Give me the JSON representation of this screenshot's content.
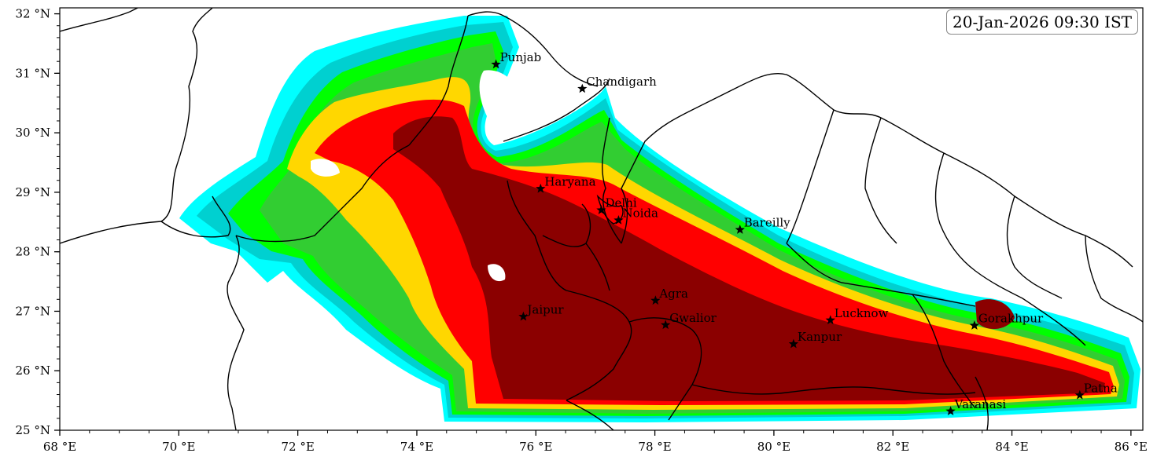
{
  "map": {
    "timestamp": "20-Jan-2026 09:30 IST",
    "extent": {
      "lon": [
        68,
        86.2
      ],
      "lat": [
        25,
        32.1
      ]
    },
    "x_ticks": [
      {
        "lon": 68,
        "label": "68 °E"
      },
      {
        "lon": 70,
        "label": "70 °E"
      },
      {
        "lon": 72,
        "label": "72 °E"
      },
      {
        "lon": 74,
        "label": "74 °E"
      },
      {
        "lon": 76,
        "label": "76 °E"
      },
      {
        "lon": 78,
        "label": "78 °E"
      },
      {
        "lon": 80,
        "label": "80 °E"
      },
      {
        "lon": 82,
        "label": "82 °E"
      },
      {
        "lon": 84,
        "label": "84 °E"
      },
      {
        "lon": 86,
        "label": "86 °E"
      }
    ],
    "y_ticks": [
      {
        "lat": 25,
        "label": "25 °N"
      },
      {
        "lat": 26,
        "label": "26 °N"
      },
      {
        "lat": 27,
        "label": "27 °N"
      },
      {
        "lat": 28,
        "label": "28 °N"
      },
      {
        "lat": 29,
        "label": "29 °N"
      },
      {
        "lat": 30,
        "label": "30 °N"
      },
      {
        "lat": 31,
        "label": "31 °N"
      },
      {
        "lat": 32,
        "label": "32 °N"
      }
    ],
    "fog_levels": [
      {
        "level": 1,
        "color": "#00ffff"
      },
      {
        "level": 2,
        "color": "#00d0d0"
      },
      {
        "level": 3,
        "color": "#00ff00"
      },
      {
        "level": 4,
        "color": "#32cd32"
      },
      {
        "level": 5,
        "color": "#ffd700"
      },
      {
        "level": 6,
        "color": "#ff0000"
      },
      {
        "level": 7,
        "color": "#8b0000"
      }
    ],
    "cities": [
      {
        "name": "Punjab",
        "lon": 75.33,
        "lat": 31.15
      },
      {
        "name": "Chandigarh",
        "lon": 76.78,
        "lat": 30.74
      },
      {
        "name": "Haryana",
        "lon": 76.08,
        "lat": 29.06
      },
      {
        "name": "Delhi",
        "lon": 77.1,
        "lat": 28.7
      },
      {
        "name": "Noida",
        "lon": 77.39,
        "lat": 28.53
      },
      {
        "name": "Bareilly",
        "lon": 79.43,
        "lat": 28.37
      },
      {
        "name": "Agra",
        "lon": 78.01,
        "lat": 27.18
      },
      {
        "name": "Jaipur",
        "lon": 75.79,
        "lat": 26.91
      },
      {
        "name": "Gwalior",
        "lon": 78.18,
        "lat": 26.77
      },
      {
        "name": "Lucknow",
        "lon": 80.95,
        "lat": 26.85
      },
      {
        "name": "Gorakhpur",
        "lon": 83.37,
        "lat": 26.76
      },
      {
        "name": "Kanpur",
        "lon": 80.33,
        "lat": 26.45
      },
      {
        "name": "Varanasi",
        "lon": 82.97,
        "lat": 25.32
      },
      {
        "name": "Patna",
        "lon": 85.14,
        "lat": 25.59
      }
    ]
  }
}
